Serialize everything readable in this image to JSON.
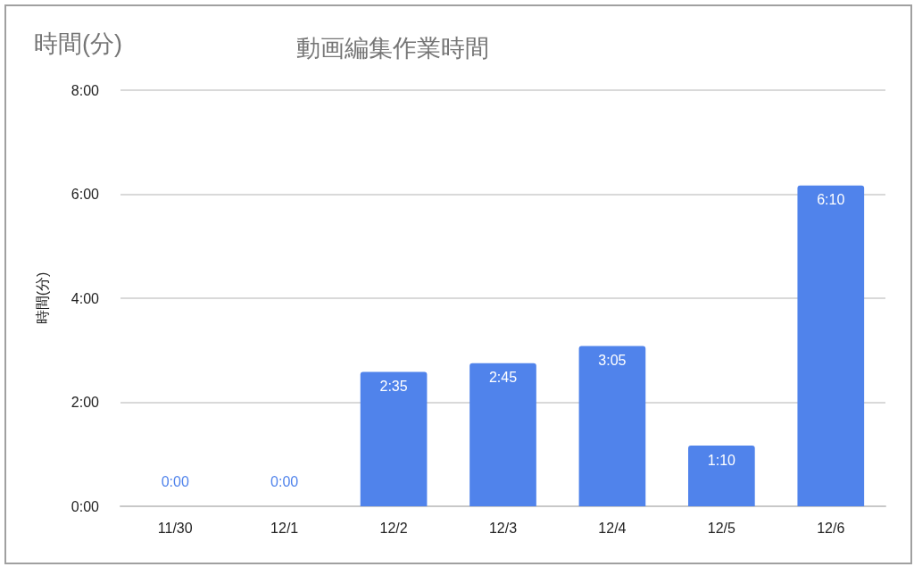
{
  "chart_data": {
    "type": "bar",
    "title": "動画編集作業時間",
    "annotations": [
      "時間(分)"
    ],
    "ylabel": "時間(分)",
    "categories": [
      "11/30",
      "12/1",
      "12/2",
      "12/3",
      "12/4",
      "12/5",
      "12/6"
    ],
    "values": [
      0,
      0,
      155,
      165,
      185,
      70,
      370
    ],
    "color": "#5083eb",
    "value_labels": [
      "0:00",
      "0:00",
      "2:35",
      "2:45",
      "3:05",
      "1:10",
      "6:10"
    ],
    "ylim": [
      0,
      480
    ],
    "yticks": [
      {
        "value": 0,
        "label": "0:00"
      },
      {
        "value": 120,
        "label": "2:00"
      },
      {
        "value": 240,
        "label": "4:00"
      },
      {
        "value": 360,
        "label": "6:00"
      },
      {
        "value": 480,
        "label": "8:00"
      }
    ],
    "grid": "y"
  }
}
